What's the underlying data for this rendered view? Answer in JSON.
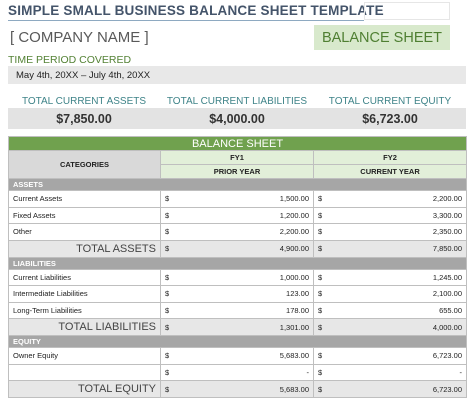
{
  "header": {
    "title": "SIMPLE SMALL BUSINESS BALANCE SHEET TEMPLATE",
    "company": "[ COMPANY NAME ]",
    "badge": "BALANCE SHEET"
  },
  "period": {
    "label": "TIME PERIOD COVERED",
    "value": "May 4th, 20XX – July 4th, 20XX"
  },
  "summary": [
    {
      "label": "TOTAL CURRENT ASSETS",
      "value": "$7,850.00"
    },
    {
      "label": "TOTAL CURRENT LIABILITIES",
      "value": "$4,000.00"
    },
    {
      "label": "TOTAL CURRENT EQUITY",
      "value": "$6,723.00"
    }
  ],
  "table": {
    "title": "BALANCE SHEET",
    "categories_label": "CATEGORIES",
    "currency": "$",
    "columns": [
      {
        "fy": "FY1",
        "sub": "PRIOR YEAR"
      },
      {
        "fy": "FY2",
        "sub": "CURRENT YEAR"
      }
    ],
    "sections": [
      {
        "name": "ASSETS",
        "rows": [
          {
            "label": "Current Assets",
            "values": [
              "1,500.00",
              "2,200.00"
            ]
          },
          {
            "label": "Fixed Assets",
            "values": [
              "1,200.00",
              "3,300.00"
            ]
          },
          {
            "label": "Other",
            "values": [
              "2,200.00",
              "2,350.00"
            ]
          }
        ],
        "total": {
          "label": "TOTAL ASSETS",
          "values": [
            "4,900.00",
            "7,850.00"
          ]
        }
      },
      {
        "name": "LIABILITIES",
        "rows": [
          {
            "label": "Current Liabilities",
            "values": [
              "1,000.00",
              "1,245.00"
            ]
          },
          {
            "label": "Intermediate Liabilities",
            "values": [
              "123.00",
              "2,100.00"
            ]
          },
          {
            "label": "Long-Term Liabilities",
            "values": [
              "178.00",
              "655.00"
            ]
          }
        ],
        "total": {
          "label": "TOTAL LIABILITIES",
          "values": [
            "1,301.00",
            "4,000.00"
          ]
        }
      },
      {
        "name": "EQUITY",
        "rows": [
          {
            "label": "Owner Equity",
            "values": [
              "5,683.00",
              "6,723.00"
            ]
          },
          {
            "label": null,
            "values": [
              "-",
              "-"
            ]
          }
        ],
        "total": {
          "label": "TOTAL EQUITY",
          "values": [
            "5,683.00",
            "6,723.00"
          ]
        }
      }
    ]
  }
}
